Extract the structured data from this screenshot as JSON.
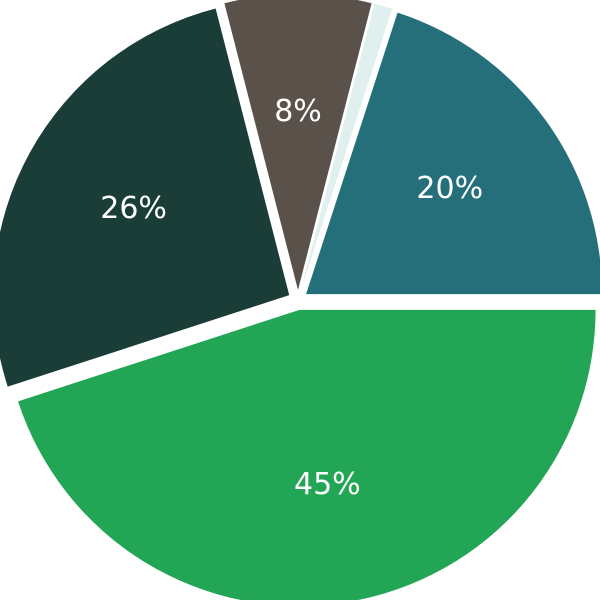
{
  "chart_data": {
    "type": "pie",
    "categories": [
      "",
      "",
      "",
      "",
      ""
    ],
    "values": [
      20,
      45,
      26,
      8,
      1
    ],
    "labels": [
      "20%",
      "45%",
      "26%",
      "8%",
      ""
    ],
    "colors": [
      "#246f7a",
      "#22a554",
      "#1a3d37",
      "#5a514b",
      "#dff0ef"
    ],
    "start_angle_deg": 18,
    "direction": "clockwise",
    "title": "",
    "legend": "none"
  }
}
